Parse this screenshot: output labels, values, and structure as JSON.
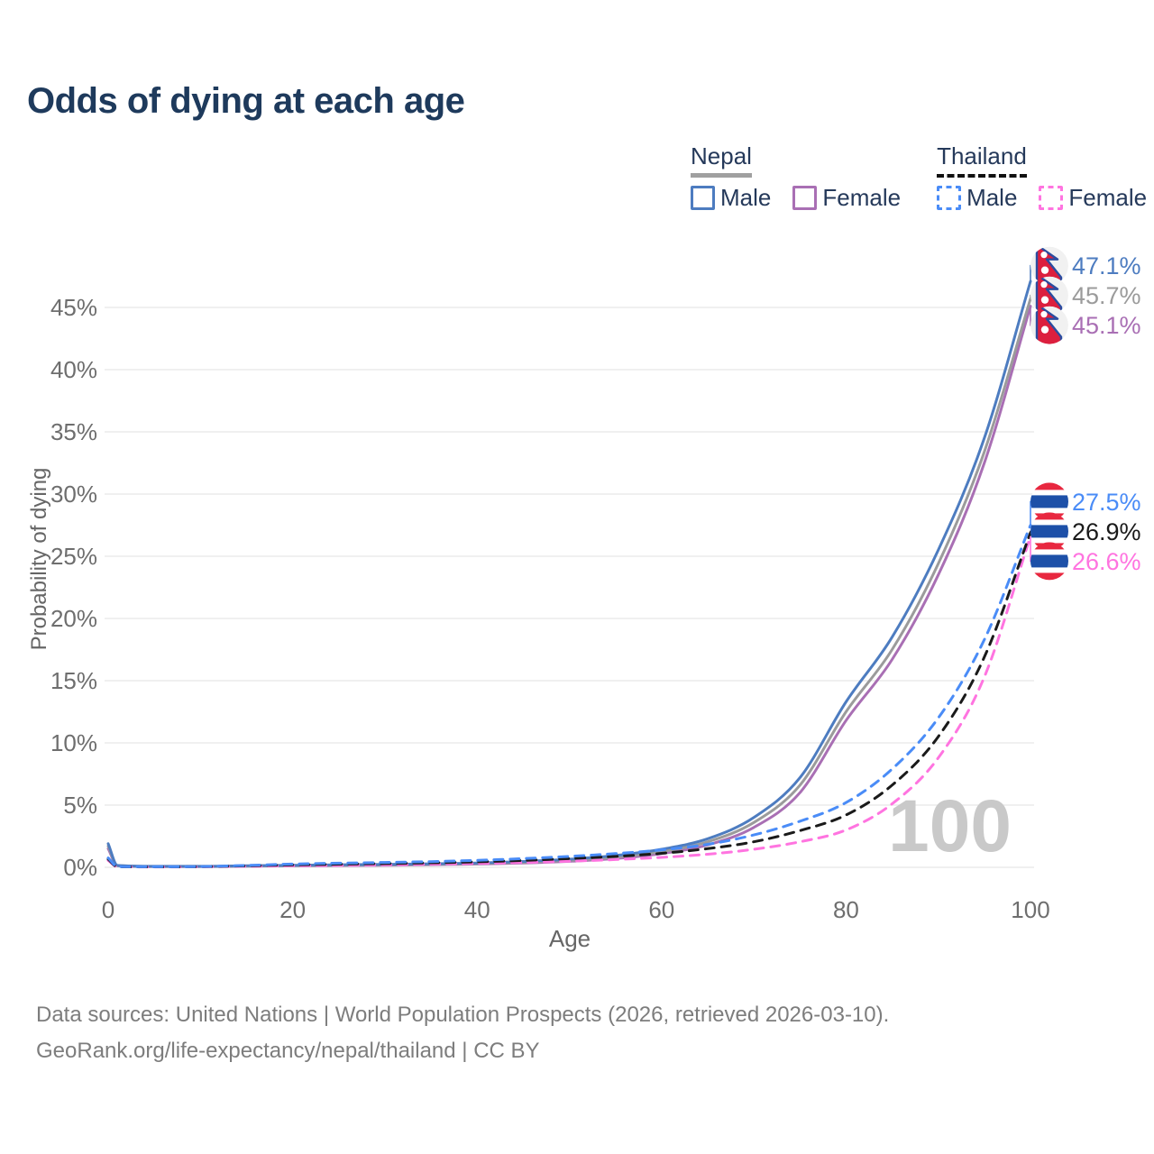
{
  "title": "Odds of dying at each age",
  "legend": {
    "groups": [
      {
        "id": "nepal",
        "label": "Nepal",
        "underline_style": "solid",
        "underline_color": "#a0a0a0",
        "items": [
          {
            "id": "nepal-male",
            "label": "Male",
            "color": "#4d7cc0",
            "dashed": false
          },
          {
            "id": "nepal-female",
            "label": "Female",
            "color": "#a96fb4",
            "dashed": false
          }
        ]
      },
      {
        "id": "thailand",
        "label": "Thailand",
        "underline_style": "dashed",
        "underline_color": "#111111",
        "items": [
          {
            "id": "thailand-male",
            "label": "Male",
            "color": "#4a8cf7",
            "dashed": true
          },
          {
            "id": "thailand-female",
            "label": "Female",
            "color": "#ff74e0",
            "dashed": true
          }
        ]
      }
    ]
  },
  "chart_data": {
    "type": "line",
    "title": "Odds of dying at each age",
    "xlabel": "Age",
    "ylabel": "Probability of dying",
    "xlim": [
      0,
      100
    ],
    "ylim": [
      0,
      48
    ],
    "grid": "horizontal",
    "x_ticks": [
      "0",
      "20",
      "40",
      "60",
      "80",
      "100"
    ],
    "x_tick_values": [
      0,
      20,
      40,
      60,
      80,
      100
    ],
    "y_ticks": [
      "0%",
      "5%",
      "10%",
      "15%",
      "20%",
      "25%",
      "30%",
      "35%",
      "40%",
      "45%"
    ],
    "y_tick_values": [
      0,
      5,
      10,
      15,
      20,
      25,
      30,
      35,
      40,
      45
    ],
    "age_indicator": "100",
    "x": [
      0,
      1,
      5,
      10,
      15,
      20,
      25,
      30,
      35,
      40,
      45,
      50,
      55,
      60,
      65,
      70,
      75,
      80,
      85,
      90,
      95,
      100
    ],
    "series": [
      {
        "name": "Nepal Female",
        "country": "Nepal",
        "sex": "Female",
        "color": "#a96fb4",
        "dashed": false,
        "flag": "nepal",
        "end_label": "45.1%",
        "values": [
          1.5,
          0.13,
          0.06,
          0.06,
          0.09,
          0.12,
          0.14,
          0.17,
          0.21,
          0.26,
          0.34,
          0.48,
          0.7,
          1.1,
          1.8,
          3.2,
          6.0,
          11.8,
          16.7,
          23.5,
          32.5,
          45.1
        ]
      },
      {
        "name": "Nepal Both sexes",
        "country": "Nepal",
        "sex": "Both",
        "color": "#9b9b9b",
        "dashed": false,
        "flag": "nepal",
        "end_label": "45.7%",
        "values": [
          1.7,
          0.14,
          0.07,
          0.07,
          0.1,
          0.14,
          0.17,
          0.2,
          0.24,
          0.3,
          0.4,
          0.56,
          0.82,
          1.27,
          2.05,
          3.6,
          6.6,
          12.5,
          17.5,
          24.4,
          33.4,
          45.7
        ]
      },
      {
        "name": "Nepal Male",
        "country": "Nepal",
        "sex": "Male",
        "color": "#4d7cc0",
        "dashed": false,
        "flag": "nepal",
        "end_label": "47.1%",
        "values": [
          1.9,
          0.15,
          0.08,
          0.08,
          0.12,
          0.17,
          0.2,
          0.23,
          0.28,
          0.35,
          0.47,
          0.65,
          0.95,
          1.45,
          2.3,
          4.0,
          7.2,
          13.3,
          18.5,
          25.5,
          34.5,
          47.1
        ]
      },
      {
        "name": "Thailand Female",
        "country": "Thailand",
        "sex": "Female",
        "color": "#ff74e0",
        "dashed": true,
        "flag": "thailand",
        "end_label": "26.6%",
        "values": [
          0.55,
          0.045,
          0.03,
          0.04,
          0.08,
          0.12,
          0.16,
          0.2,
          0.25,
          0.31,
          0.39,
          0.49,
          0.62,
          0.8,
          1.05,
          1.45,
          2.05,
          3.0,
          5.1,
          8.8,
          15.3,
          26.6
        ]
      },
      {
        "name": "Thailand Both sexes",
        "country": "Thailand",
        "sex": "Both",
        "color": "#1a1a1a",
        "dashed": true,
        "flag": "thailand",
        "end_label": "26.9%",
        "values": [
          0.65,
          0.05,
          0.035,
          0.05,
          0.12,
          0.2,
          0.25,
          0.3,
          0.36,
          0.44,
          0.55,
          0.7,
          0.88,
          1.12,
          1.5,
          2.05,
          2.95,
          4.2,
          6.6,
          10.5,
          16.9,
          26.9
        ]
      },
      {
        "name": "Thailand Male",
        "country": "Thailand",
        "sex": "Male",
        "color": "#4a8cf7",
        "dashed": true,
        "flag": "thailand",
        "end_label": "27.5%",
        "values": [
          0.75,
          0.06,
          0.04,
          0.06,
          0.15,
          0.26,
          0.33,
          0.39,
          0.46,
          0.56,
          0.7,
          0.88,
          1.1,
          1.4,
          1.85,
          2.6,
          3.7,
          5.2,
          7.9,
          12.0,
          18.3,
          27.5
        ]
      }
    ]
  },
  "footer": {
    "line1": "Data sources: United Nations | World Population Prospects (2026, retrieved 2026-03-10).",
    "line2": "GeoRank.org/life-expectancy/nepal/thailand | CC BY"
  }
}
